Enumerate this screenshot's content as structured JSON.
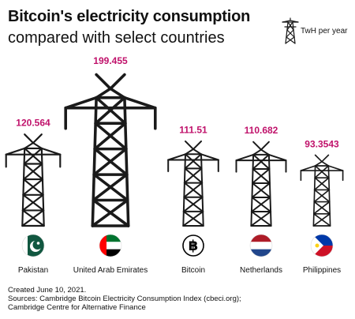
{
  "header": {
    "title": "Bitcoin's electricity consumption",
    "subtitle": "compared with select countries"
  },
  "legend": {
    "label": "TwH per year",
    "icon": "power-pylon-icon"
  },
  "colors": {
    "accent": "#c0126b",
    "ink": "#1a1a1a"
  },
  "chart_data": {
    "type": "bar",
    "title": "Bitcoin's electricity consumption",
    "subtitle": "compared with select countries",
    "unit": "TwH per year",
    "categories": [
      "Pakistan",
      "United Arab Emirates",
      "Bitcoin",
      "Netherlands",
      "Philippines"
    ],
    "values": [
      120.564,
      199.455,
      111.51,
      110.682,
      93.3543
    ],
    "value_labels": [
      "120.564",
      "199.455",
      "111.51",
      "110.682",
      "93.3543"
    ],
    "icons": [
      "pakistan-flag-icon",
      "uae-flag-icon",
      "bitcoin-logo-icon",
      "netherlands-flag-icon",
      "philippines-flag-icon"
    ]
  },
  "footer": {
    "created": "Created June 10, 2021.",
    "sources_line1": "Sources: Cambridge Bitcoin Electricity Consumption Index (cbeci.org);",
    "sources_line2": "Cambridge Centre for Alternative Finance"
  }
}
